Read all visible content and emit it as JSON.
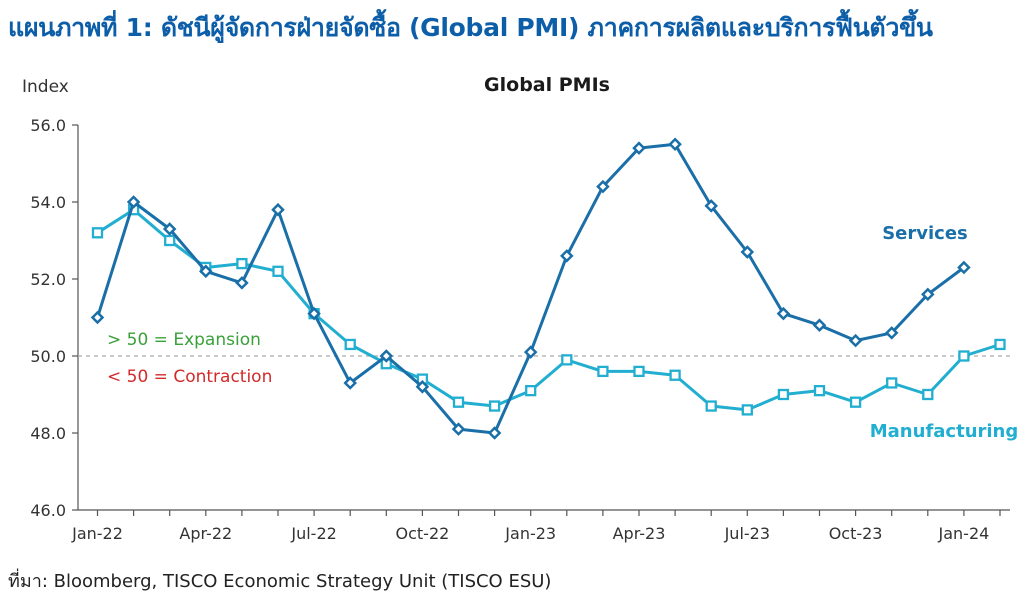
{
  "page_title": "แผนภาพที่ 1: ดัชนีผู้จัดการฝ่ายจัดซื้อ (Global PMI) ภาคการผลิตและบริการฟื้นตัวขึ้น",
  "source": "ที่มา: Bloomberg, TISCO Economic Strategy Unit (TISCO ESU)",
  "chart_data": {
    "type": "line",
    "title": "Global PMIs",
    "ylabel": "Index",
    "xlabel": "",
    "ylim": [
      46.0,
      56.0
    ],
    "yticks": [
      46.0,
      48.0,
      50.0,
      52.0,
      54.0,
      56.0
    ],
    "ytick_labels": [
      "46.0",
      "48.0",
      "50.0",
      "52.0",
      "54.0",
      "56.0"
    ],
    "x": [
      "Jan-22",
      "Feb-22",
      "Mar-22",
      "Apr-22",
      "May-22",
      "Jun-22",
      "Jul-22",
      "Aug-22",
      "Sep-22",
      "Oct-22",
      "Nov-22",
      "Dec-22",
      "Jan-23",
      "Feb-23",
      "Mar-23",
      "Apr-23",
      "May-23",
      "Jun-23",
      "Jul-23",
      "Aug-23",
      "Sep-23",
      "Oct-23",
      "Nov-23",
      "Dec-23",
      "Jan-24",
      "Feb-24"
    ],
    "xticks": [
      "Jan-22",
      "Apr-22",
      "Jul-22",
      "Oct-22",
      "Jan-23",
      "Apr-23",
      "Jul-23",
      "Oct-23",
      "Jan-24"
    ],
    "reference_line": 50.0,
    "annotations": [
      {
        "text": "> 50 = Expansion",
        "color": "#3aa13a"
      },
      {
        "text": "< 50 = Contraction",
        "color": "#d12a2a"
      }
    ],
    "series": [
      {
        "name": "Services",
        "color": "#1a6fa8",
        "marker": "diamond",
        "values": [
          51.0,
          54.0,
          53.3,
          52.2,
          51.9,
          53.8,
          51.1,
          49.3,
          50.0,
          49.2,
          48.1,
          48.0,
          50.1,
          52.6,
          54.4,
          55.4,
          55.5,
          53.9,
          52.7,
          51.1,
          50.8,
          50.4,
          50.6,
          51.6,
          52.3,
          null
        ]
      },
      {
        "name": "Manufacturing",
        "color": "#22aed0",
        "marker": "square",
        "values": [
          53.2,
          53.8,
          53.0,
          52.3,
          52.4,
          52.2,
          51.1,
          50.3,
          49.8,
          49.4,
          48.8,
          48.7,
          49.1,
          49.9,
          49.6,
          49.6,
          49.5,
          48.7,
          48.6,
          49.0,
          49.1,
          48.8,
          49.3,
          49.0,
          50.0,
          50.3
        ]
      }
    ]
  }
}
